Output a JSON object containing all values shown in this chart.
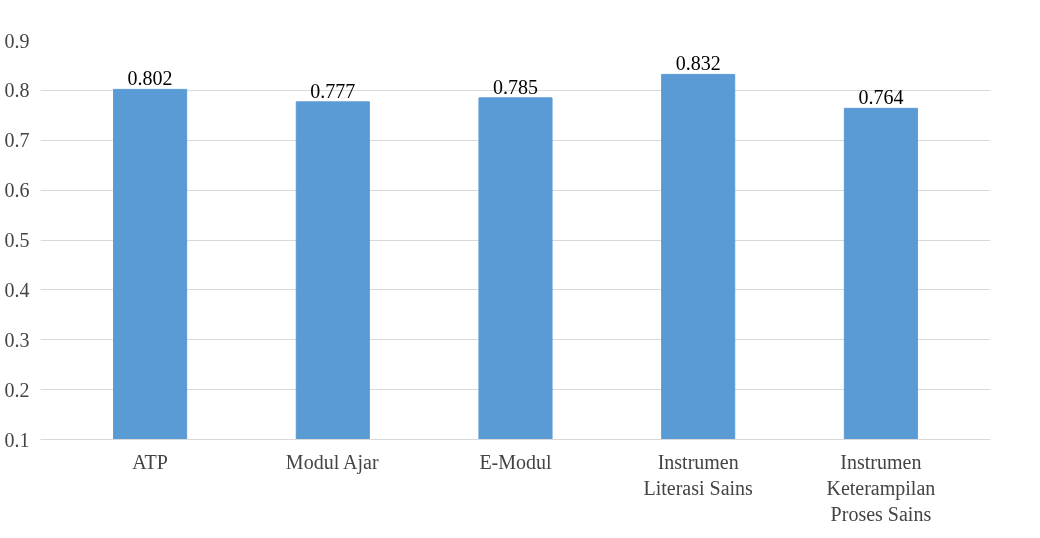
{
  "chart_data": {
    "type": "bar",
    "categories": [
      "ATP",
      "Modul Ajar",
      "E-Modul",
      "Instrumen\nLiterasi Sains",
      "Instrumen\nKeterampilan\nProses Sains"
    ],
    "values": [
      0.802,
      0.777,
      0.785,
      0.832,
      0.764
    ],
    "color": "#5b9bd5",
    "ylim": [
      0.1,
      0.9
    ],
    "yticks": [
      0.1,
      0.2,
      0.3,
      0.4,
      0.5,
      0.6,
      0.7,
      0.8,
      0.9
    ],
    "grid": "y",
    "data_labels": true
  }
}
